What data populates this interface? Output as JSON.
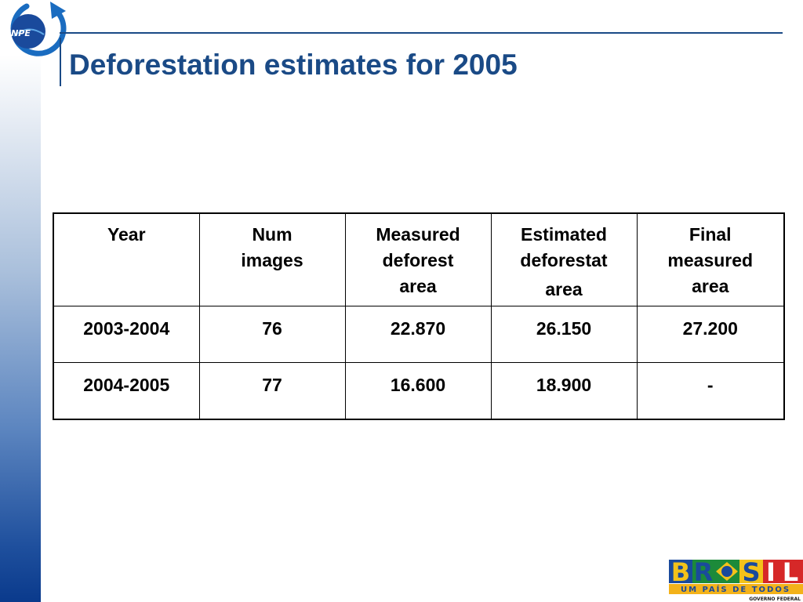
{
  "slide": {
    "title": "Deforestation estimates for 2005"
  },
  "logo": {
    "text": "INPE"
  },
  "table": {
    "headers": [
      {
        "lines": [
          "Year"
        ]
      },
      {
        "lines": [
          "Num",
          "images"
        ]
      },
      {
        "lines": [
          "Measured",
          "deforest",
          "area"
        ]
      },
      {
        "lines": [
          "Estimated",
          "deforestat",
          "area"
        ]
      },
      {
        "lines": [
          "Final",
          "measured",
          "area"
        ]
      }
    ],
    "rows": [
      [
        "2003-2004",
        "76",
        "22.870",
        "26.150",
        "27.200"
      ],
      [
        "2004-2005",
        "77",
        "16.600",
        "18.900",
        "-"
      ]
    ]
  },
  "footer_logo": {
    "word": "BRASIL",
    "tagline": "UM PAÍS DE TODOS",
    "subline": "GOVERNO FEDERAL"
  },
  "colors": {
    "title": "#1a4a86",
    "rule": "#1a4a86",
    "sidebar_dark": "#0a3a8c",
    "brasil_blue": "#1a4a9c",
    "brasil_green": "#1c8a3a",
    "brasil_yellow": "#f3c21a",
    "brasil_red": "#d62828",
    "tagline_bg": "#f3b21a"
  }
}
